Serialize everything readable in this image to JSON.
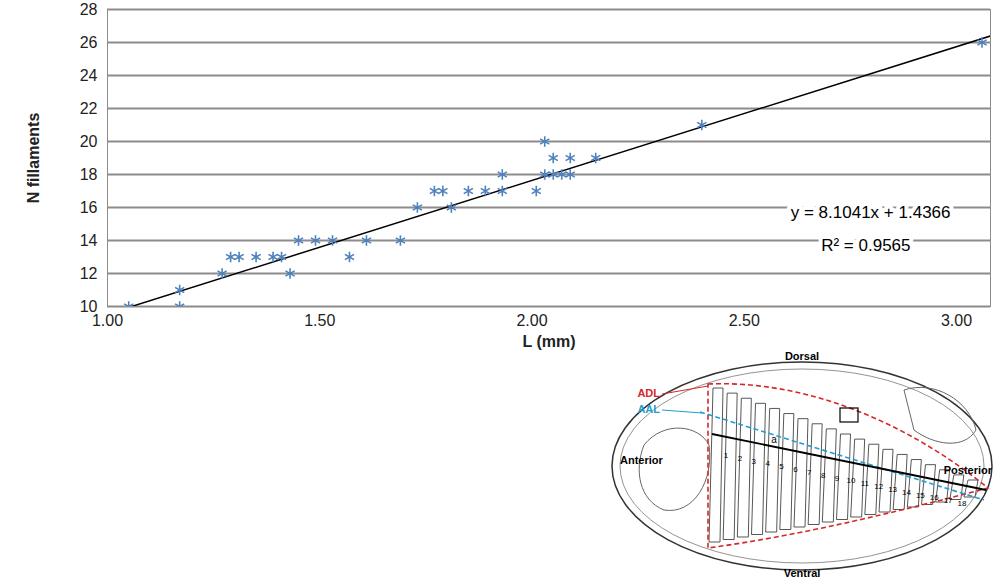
{
  "chart_data": {
    "type": "scatter",
    "x_label": "L (mm)",
    "y_label": "N fillaments",
    "color": "#4f81bd",
    "marker": "asterisk",
    "x": [
      1.05,
      1.17,
      1.17,
      1.27,
      1.29,
      1.31,
      1.35,
      1.39,
      1.41,
      1.43,
      1.45,
      1.49,
      1.53,
      1.57,
      1.61,
      1.69,
      1.73,
      1.77,
      1.79,
      1.81,
      1.85,
      1.89,
      1.93,
      1.93,
      2.01,
      2.03,
      2.03,
      2.05,
      2.05,
      2.07,
      2.09,
      2.09,
      2.15,
      2.4,
      3.06
    ],
    "values": [
      10,
      11,
      10,
      12,
      13,
      13,
      13,
      13,
      13,
      12,
      14,
      14,
      14,
      13,
      14,
      14,
      16,
      17,
      17,
      16,
      17,
      17,
      17,
      18,
      17,
      20,
      18,
      18,
      19,
      18,
      19,
      18,
      19,
      21,
      26
    ],
    "xlim": [
      1.0,
      3.08
    ],
    "xticks": [
      {
        "value": 1.0,
        "label": "1.00"
      },
      {
        "value": 1.5,
        "label": "1.50"
      },
      {
        "value": 2.0,
        "label": "2.00"
      },
      {
        "value": 2.5,
        "label": "2.50"
      },
      {
        "value": 3.0,
        "label": "3.00"
      }
    ],
    "ylim": [
      10,
      28
    ],
    "yticks": [
      10,
      12,
      14,
      16,
      18,
      20,
      22,
      24,
      26,
      28
    ],
    "grid": true,
    "trendline": {
      "slope": 8.1041,
      "intercept": 1.4366,
      "x": [
        1.05,
        3.08
      ],
      "color": "#000000"
    },
    "annotations": [
      "y = 8.1041x + 1.4366",
      "R² = 0.9565"
    ],
    "inset": {
      "dorsal": "Dorsal",
      "ventral": "Ventral",
      "anterior": "Anterior",
      "posterior": "Posterior",
      "adl": "ADL",
      "aal": "AAL",
      "axis_letter": "a",
      "adl_color": "#d62728",
      "aal_color": "#1f9fd0",
      "numbers": [
        1,
        2,
        3,
        4,
        5,
        6,
        7,
        8,
        9,
        10,
        11,
        12,
        13,
        14,
        15,
        16,
        17,
        18
      ]
    }
  }
}
